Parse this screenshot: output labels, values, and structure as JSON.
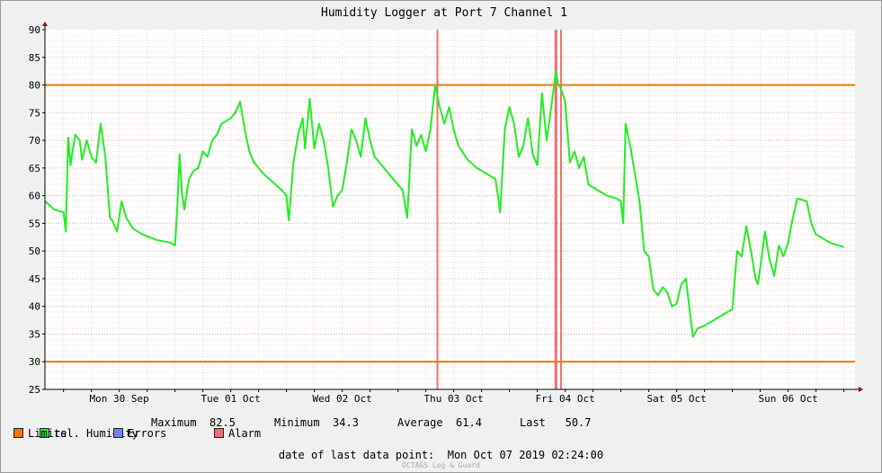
{
  "colors": {
    "humidity": "#22ee22",
    "limits": "#ee7700",
    "errors": "#6d84f0",
    "alarm": "#f07070",
    "grid_h": "#f4a0a0",
    "grid_v": "#d8d8d8",
    "plot_bg": "#ffffff",
    "page_bg": "#f0f0f0"
  },
  "chart_data": {
    "type": "line",
    "title": "Humidity Logger at Port 7 Channel 1",
    "ylim": [
      25,
      90
    ],
    "y_ticks": [
      25,
      30,
      35,
      40,
      45,
      50,
      55,
      60,
      65,
      70,
      75,
      80,
      85,
      90
    ],
    "xlim": [
      "2019-09-29 20:00",
      "2019-10-07 02:24"
    ],
    "x_tick_labels": [
      "Mon 30 Sep",
      "Tue 01 Oct",
      "Wed 02 Oct",
      "Thu 03 Oct",
      "Fri 04 Oct",
      "Sat 05 Oct",
      "Sun 06 Oct"
    ],
    "x_tick_dates": [
      "2019-09-30 12:00",
      "2019-10-01 12:00",
      "2019-10-02 12:00",
      "2019-10-03 12:00",
      "2019-10-04 12:00",
      "2019-10-05 12:00",
      "2019-10-06 12:00"
    ],
    "limits": [
      80,
      30
    ],
    "alarms": [
      {
        "start": "2019-10-03 08:18",
        "end": "2019-10-03 08:36"
      },
      {
        "start": "2019-10-04 09:42",
        "end": "2019-10-04 10:18"
      },
      {
        "start": "2019-10-04 10:54",
        "end": "2019-10-04 11:12"
      }
    ],
    "series": [
      {
        "name": "rel. Humidity",
        "points": [
          [
            "2019-09-29 20:00",
            59.0
          ],
          [
            "2019-09-29 22:00",
            57.5
          ],
          [
            "2019-09-30 00:00",
            57.0
          ],
          [
            "2019-09-30 00:30",
            53.5
          ],
          [
            "2019-09-30 01:00",
            70.5
          ],
          [
            "2019-09-30 01:30",
            65.5
          ],
          [
            "2019-09-30 02:30",
            71.0
          ],
          [
            "2019-09-30 03:30",
            70.0
          ],
          [
            "2019-09-30 04:00",
            66.5
          ],
          [
            "2019-09-30 05:00",
            70.0
          ],
          [
            "2019-09-30 06:00",
            67.0
          ],
          [
            "2019-09-30 07:00",
            66.0
          ],
          [
            "2019-09-30 08:00",
            73.0
          ],
          [
            "2019-09-30 09:00",
            67.0
          ],
          [
            "2019-09-30 10:00",
            56.0
          ],
          [
            "2019-09-30 10:30",
            55.5
          ],
          [
            "2019-09-30 11:30",
            53.5
          ],
          [
            "2019-09-30 12:30",
            59.0
          ],
          [
            "2019-09-30 13:30",
            56.0
          ],
          [
            "2019-09-30 15:00",
            54.0
          ],
          [
            "2019-09-30 17:00",
            53.0
          ],
          [
            "2019-09-30 20:00",
            52.0
          ],
          [
            "2019-09-30 23:00",
            51.5
          ],
          [
            "2019-10-01 00:00",
            51.0
          ],
          [
            "2019-10-01 00:30",
            58.0
          ],
          [
            "2019-10-01 01:00",
            67.5
          ],
          [
            "2019-10-01 01:30",
            60.5
          ],
          [
            "2019-10-01 02:00",
            57.5
          ],
          [
            "2019-10-01 03:00",
            63.0
          ],
          [
            "2019-10-01 04:00",
            64.5
          ],
          [
            "2019-10-01 05:00",
            65.0
          ],
          [
            "2019-10-01 06:00",
            68.0
          ],
          [
            "2019-10-01 07:00",
            67.0
          ],
          [
            "2019-10-01 08:00",
            70.0
          ],
          [
            "2019-10-01 09:00",
            71.0
          ],
          [
            "2019-10-01 10:00",
            73.0
          ],
          [
            "2019-10-01 11:00",
            73.5
          ],
          [
            "2019-10-01 12:00",
            74.0
          ],
          [
            "2019-10-01 13:00",
            75.0
          ],
          [
            "2019-10-01 14:00",
            77.0
          ],
          [
            "2019-10-01 15:00",
            72.0
          ],
          [
            "2019-10-01 16:00",
            68.0
          ],
          [
            "2019-10-01 17:00",
            66.0
          ],
          [
            "2019-10-01 19:00",
            64.0
          ],
          [
            "2019-10-01 21:00",
            62.5
          ],
          [
            "2019-10-01 23:00",
            61.0
          ],
          [
            "2019-10-02 00:00",
            60.0
          ],
          [
            "2019-10-02 00:30",
            55.5
          ],
          [
            "2019-10-02 01:30",
            66.0
          ],
          [
            "2019-10-02 02:30",
            71.0
          ],
          [
            "2019-10-02 03:30",
            74.0
          ],
          [
            "2019-10-02 04:00",
            68.5
          ],
          [
            "2019-10-02 05:00",
            77.5
          ],
          [
            "2019-10-02 06:00",
            68.5
          ],
          [
            "2019-10-02 07:00",
            73.0
          ],
          [
            "2019-10-02 08:00",
            70.0
          ],
          [
            "2019-10-02 09:00",
            65.0
          ],
          [
            "2019-10-02 10:00",
            58.0
          ],
          [
            "2019-10-02 11:00",
            60.0
          ],
          [
            "2019-10-02 12:00",
            61.0
          ],
          [
            "2019-10-02 13:00",
            66.0
          ],
          [
            "2019-10-02 14:00",
            72.0
          ],
          [
            "2019-10-02 15:00",
            70.0
          ],
          [
            "2019-10-02 16:00",
            67.0
          ],
          [
            "2019-10-02 17:00",
            74.0
          ],
          [
            "2019-10-02 18:00",
            70.0
          ],
          [
            "2019-10-02 19:00",
            67.0
          ],
          [
            "2019-10-02 21:00",
            65.0
          ],
          [
            "2019-10-02 23:00",
            63.0
          ],
          [
            "2019-10-03 01:00",
            61.0
          ],
          [
            "2019-10-03 02:00",
            56.0
          ],
          [
            "2019-10-03 03:00",
            72.0
          ],
          [
            "2019-10-03 04:00",
            69.0
          ],
          [
            "2019-10-03 05:00",
            71.0
          ],
          [
            "2019-10-03 06:00",
            68.0
          ],
          [
            "2019-10-03 07:00",
            72.0
          ],
          [
            "2019-10-03 08:00",
            80.0
          ],
          [
            "2019-10-03 09:00",
            76.0
          ],
          [
            "2019-10-03 10:00",
            73.0
          ],
          [
            "2019-10-03 11:00",
            76.0
          ],
          [
            "2019-10-03 12:00",
            72.0
          ],
          [
            "2019-10-03 13:00",
            69.0
          ],
          [
            "2019-10-03 15:00",
            66.5
          ],
          [
            "2019-10-03 17:00",
            65.0
          ],
          [
            "2019-10-03 19:00",
            64.0
          ],
          [
            "2019-10-03 21:00",
            63.0
          ],
          [
            "2019-10-03 22:00",
            57.0
          ],
          [
            "2019-10-03 23:00",
            72.0
          ],
          [
            "2019-10-04 00:00",
            76.0
          ],
          [
            "2019-10-04 01:00",
            73.0
          ],
          [
            "2019-10-04 02:00",
            67.0
          ],
          [
            "2019-10-04 03:00",
            69.0
          ],
          [
            "2019-10-04 04:00",
            74.0
          ],
          [
            "2019-10-04 05:00",
            67.5
          ],
          [
            "2019-10-04 06:00",
            65.5
          ],
          [
            "2019-10-04 07:00",
            78.5
          ],
          [
            "2019-10-04 08:00",
            70.0
          ],
          [
            "2019-10-04 09:00",
            76.0
          ],
          [
            "2019-10-04 10:00",
            82.5
          ],
          [
            "2019-10-04 10:30",
            80.0
          ],
          [
            "2019-10-04 11:00",
            79.5
          ],
          [
            "2019-10-04 12:00",
            77.0
          ],
          [
            "2019-10-04 13:00",
            66.0
          ],
          [
            "2019-10-04 14:00",
            68.0
          ],
          [
            "2019-10-04 15:00",
            65.0
          ],
          [
            "2019-10-04 16:00",
            67.0
          ],
          [
            "2019-10-04 17:00",
            62.0
          ],
          [
            "2019-10-04 19:00",
            61.0
          ],
          [
            "2019-10-04 21:00",
            60.0
          ],
          [
            "2019-10-04 23:00",
            59.5
          ],
          [
            "2019-10-05 00:00",
            59.0
          ],
          [
            "2019-10-05 00:30",
            55.0
          ],
          [
            "2019-10-05 01:00",
            73.0
          ],
          [
            "2019-10-05 02:00",
            69.0
          ],
          [
            "2019-10-05 03:00",
            64.0
          ],
          [
            "2019-10-05 04:00",
            59.0
          ],
          [
            "2019-10-05 05:00",
            50.0
          ],
          [
            "2019-10-05 06:00",
            49.0
          ],
          [
            "2019-10-05 07:00",
            43.0
          ],
          [
            "2019-10-05 08:00",
            42.0
          ],
          [
            "2019-10-05 09:00",
            43.5
          ],
          [
            "2019-10-05 10:00",
            42.5
          ],
          [
            "2019-10-05 11:00",
            40.0
          ],
          [
            "2019-10-05 12:00",
            40.5
          ],
          [
            "2019-10-05 13:00",
            44.0
          ],
          [
            "2019-10-05 14:00",
            45.0
          ],
          [
            "2019-10-05 15:00",
            38.0
          ],
          [
            "2019-10-05 15:30",
            34.5
          ],
          [
            "2019-10-05 16:30",
            36.0
          ],
          [
            "2019-10-05 18:00",
            36.5
          ],
          [
            "2019-10-05 20:00",
            37.5
          ],
          [
            "2019-10-05 22:00",
            38.5
          ],
          [
            "2019-10-06 00:00",
            39.5
          ],
          [
            "2019-10-06 01:00",
            50.0
          ],
          [
            "2019-10-06 02:00",
            49.0
          ],
          [
            "2019-10-06 03:00",
            54.5
          ],
          [
            "2019-10-06 04:00",
            50.0
          ],
          [
            "2019-10-06 05:00",
            45.0
          ],
          [
            "2019-10-06 05:30",
            44.0
          ],
          [
            "2019-10-06 06:00",
            47.0
          ],
          [
            "2019-10-06 07:00",
            53.5
          ],
          [
            "2019-10-06 08:00",
            48.5
          ],
          [
            "2019-10-06 09:00",
            45.5
          ],
          [
            "2019-10-06 10:00",
            51.0
          ],
          [
            "2019-10-06 11:00",
            49.0
          ],
          [
            "2019-10-06 12:00",
            51.5
          ],
          [
            "2019-10-06 13:00",
            56.0
          ],
          [
            "2019-10-06 14:00",
            59.5
          ],
          [
            "2019-10-06 16:00",
            59.0
          ],
          [
            "2019-10-06 17:00",
            55.0
          ],
          [
            "2019-10-06 18:00",
            53.0
          ],
          [
            "2019-10-06 21:00",
            51.5
          ],
          [
            "2019-10-07 00:00",
            50.7
          ]
        ]
      }
    ]
  },
  "legend": {
    "humidity_label": "rel. Humidity",
    "max_label": "Maximum",
    "max_value": "82.5",
    "min_label": "Minimum",
    "min_value": "34.3",
    "avg_label": "Average",
    "avg_value": "61.4",
    "last_label": "Last",
    "last_value": "50.7",
    "limits_label": "Limits",
    "errors_label": "Errors",
    "alarm_label": "Alarm"
  },
  "footer": {
    "last_point_label": "date of last data point:",
    "last_point_value": "Mon Oct 07 2019 02:24:00",
    "watermark": "OCTA&S Log & Guard"
  }
}
